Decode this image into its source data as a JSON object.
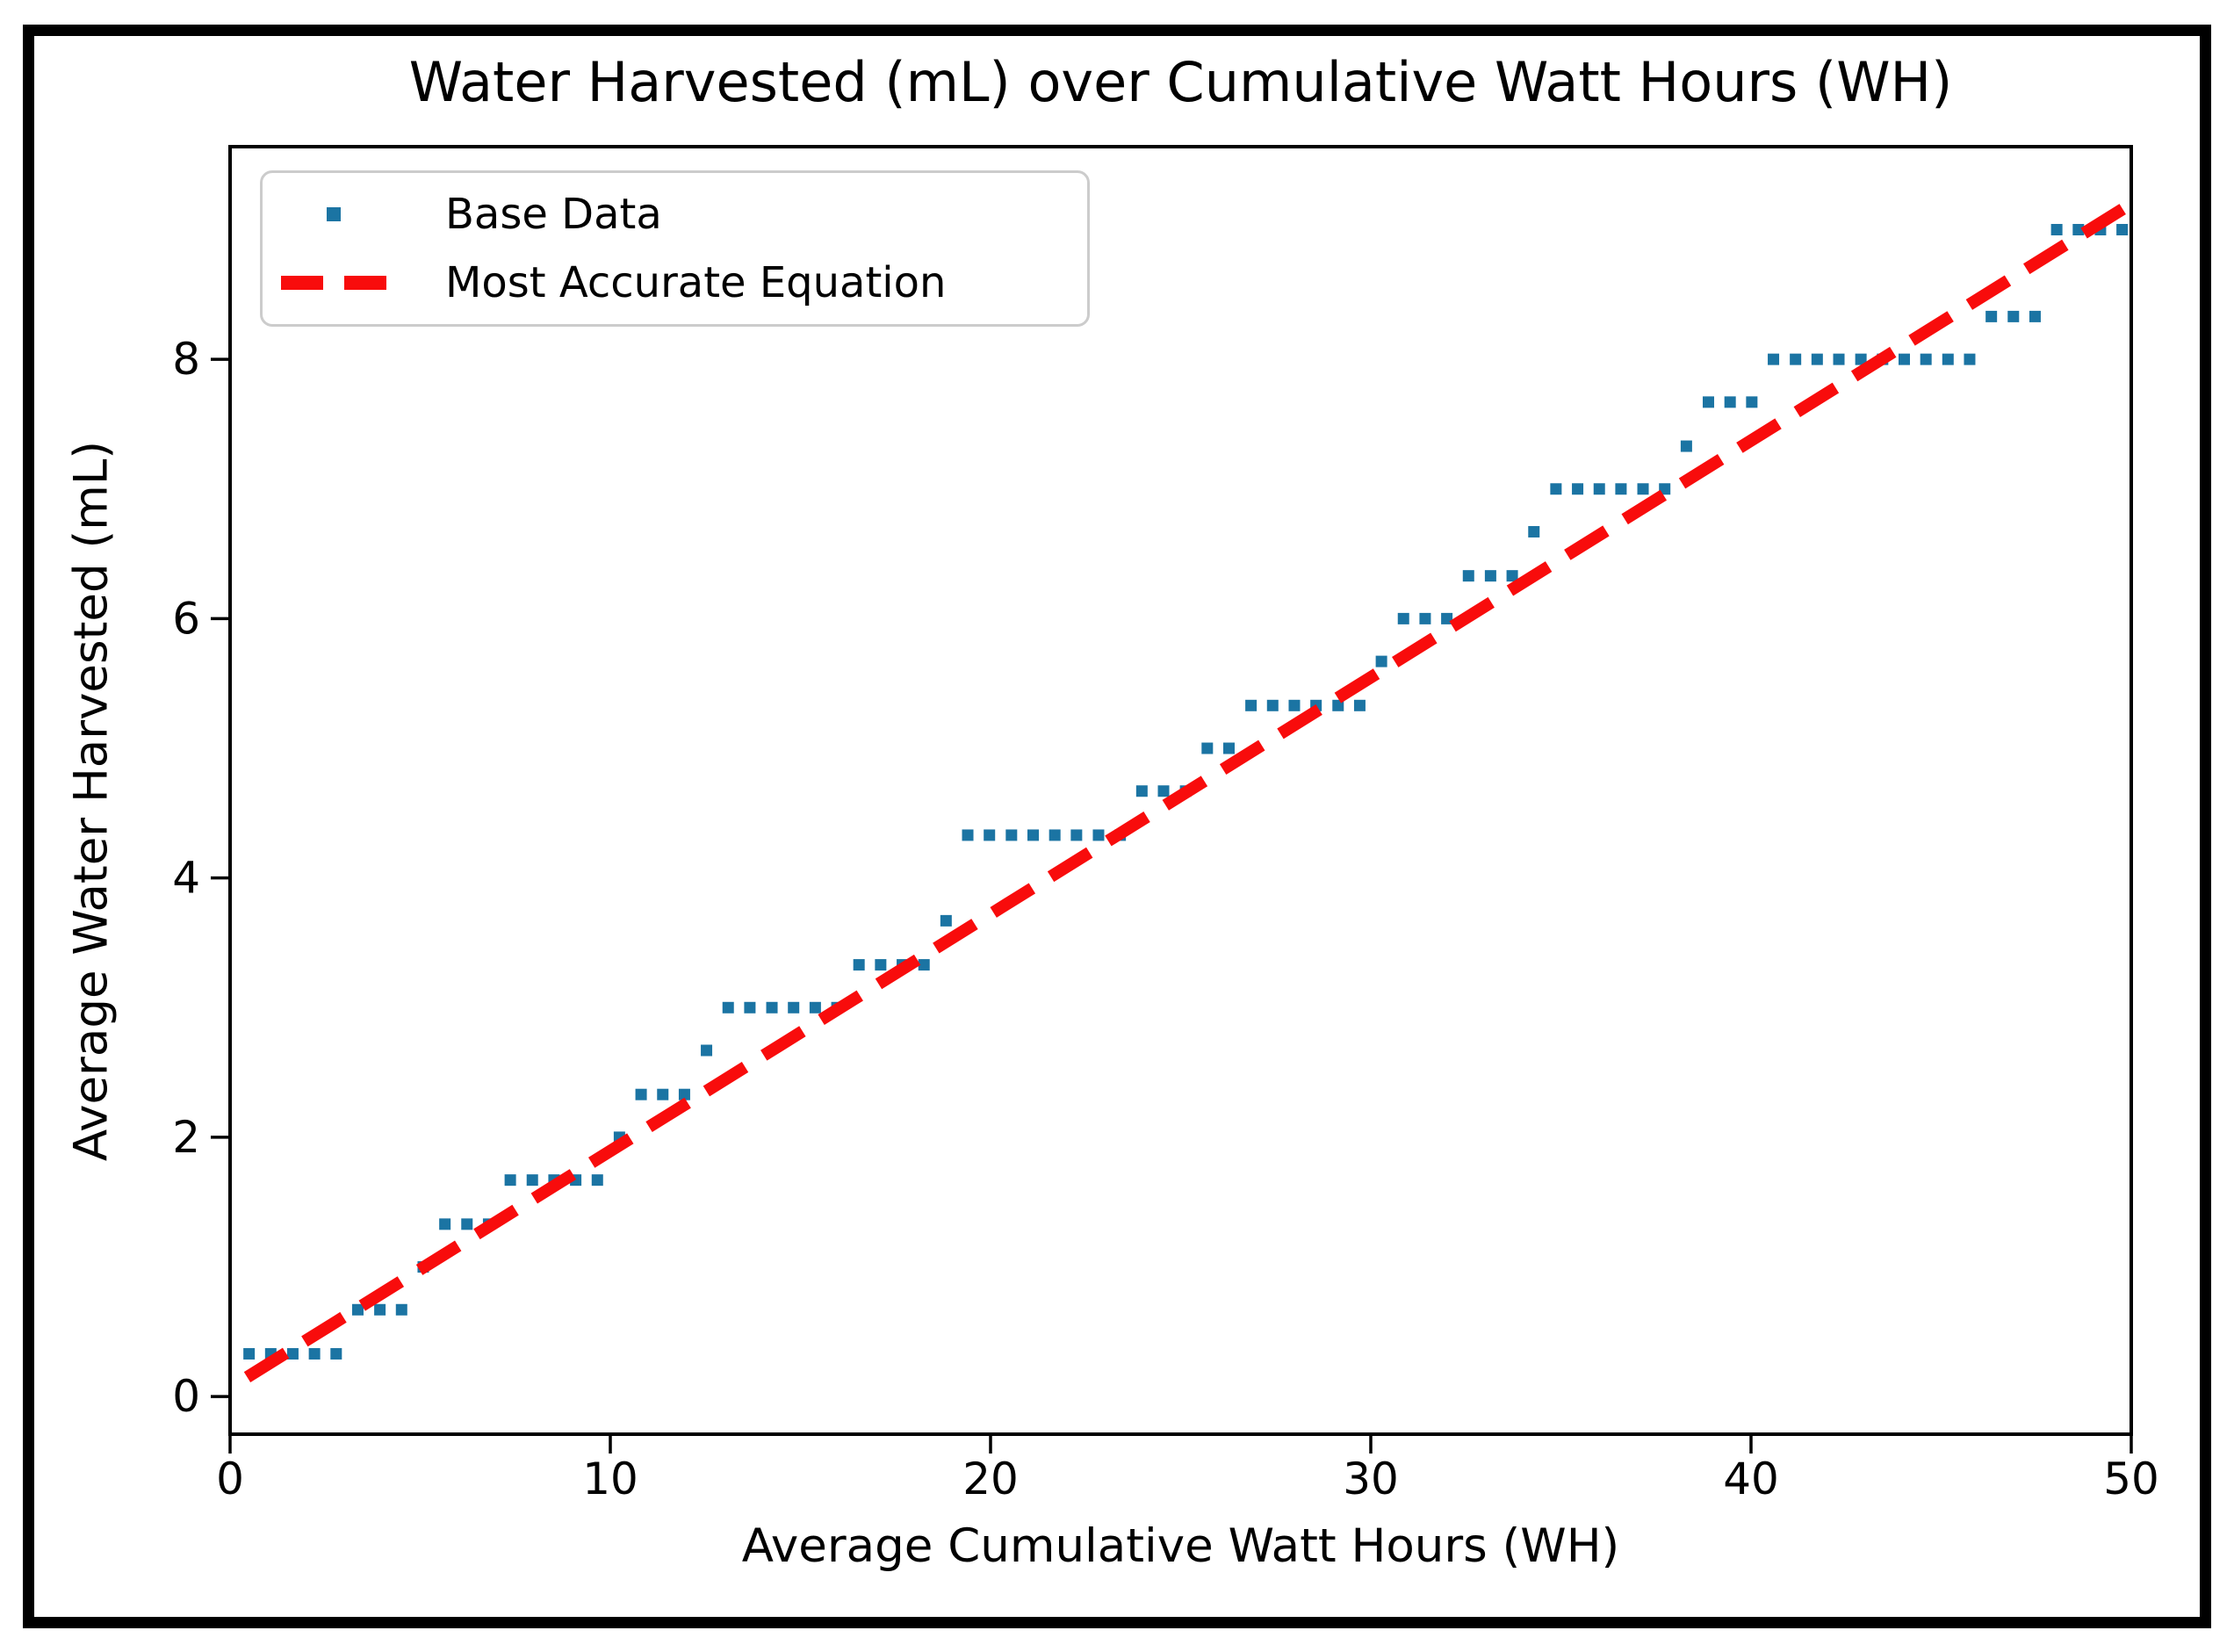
{
  "window": {
    "background": "#ffffff",
    "frame_border_color": "#000000"
  },
  "chart_data": {
    "type": "scatter",
    "title": "Water Harvested (mL) over Cumulative Watt Hours (WH)",
    "xlabel": "Average Cumulative Watt Hours (WH)",
    "ylabel": "Average Water Harvested (mL)",
    "xlim": [
      0,
      50
    ],
    "ylim": [
      -0.29,
      9.64
    ],
    "x_ticks": [
      0,
      10,
      20,
      30,
      40,
      50
    ],
    "y_ticks": [
      0,
      2,
      4,
      6,
      8
    ],
    "grid": false,
    "legend_position": "upper left",
    "axis_color": "#000000",
    "series": [
      {
        "name": "Base Data",
        "type": "scatter",
        "marker": "square",
        "color": "#1b74a3",
        "points": [
          [
            0.5,
            0.33
          ],
          [
            1.07,
            0.33
          ],
          [
            1.65,
            0.33
          ],
          [
            2.22,
            0.33
          ],
          [
            2.79,
            0.33
          ],
          [
            3.36,
            0.67
          ],
          [
            3.94,
            0.67
          ],
          [
            4.51,
            0.67
          ],
          [
            5.08,
            1.0
          ],
          [
            5.65,
            1.33
          ],
          [
            6.23,
            1.33
          ],
          [
            6.8,
            1.33
          ],
          [
            7.37,
            1.67
          ],
          [
            7.95,
            1.67
          ],
          [
            8.52,
            1.67
          ],
          [
            9.09,
            1.67
          ],
          [
            9.66,
            1.67
          ],
          [
            10.24,
            2.0
          ],
          [
            10.81,
            2.33
          ],
          [
            11.38,
            2.33
          ],
          [
            11.95,
            2.33
          ],
          [
            12.53,
            2.67
          ],
          [
            13.1,
            3.0
          ],
          [
            13.67,
            3.0
          ],
          [
            14.25,
            3.0
          ],
          [
            14.82,
            3.0
          ],
          [
            15.39,
            3.0
          ],
          [
            15.96,
            3.0
          ],
          [
            16.54,
            3.33
          ],
          [
            17.11,
            3.33
          ],
          [
            17.68,
            3.33
          ],
          [
            18.25,
            3.33
          ],
          [
            18.83,
            3.67
          ],
          [
            19.4,
            4.33
          ],
          [
            19.97,
            4.33
          ],
          [
            20.55,
            4.33
          ],
          [
            21.12,
            4.33
          ],
          [
            21.69,
            4.33
          ],
          [
            22.26,
            4.33
          ],
          [
            22.84,
            4.33
          ],
          [
            23.41,
            4.33
          ],
          [
            23.98,
            4.67
          ],
          [
            24.55,
            4.67
          ],
          [
            25.13,
            4.67
          ],
          [
            25.7,
            5.0
          ],
          [
            26.27,
            5.0
          ],
          [
            26.85,
            5.33
          ],
          [
            27.42,
            5.33
          ],
          [
            27.99,
            5.33
          ],
          [
            28.56,
            5.33
          ],
          [
            29.14,
            5.33
          ],
          [
            29.71,
            5.33
          ],
          [
            30.28,
            5.67
          ],
          [
            30.86,
            6.0
          ],
          [
            31.43,
            6.0
          ],
          [
            32.0,
            6.0
          ],
          [
            32.57,
            6.33
          ],
          [
            33.15,
            6.33
          ],
          [
            33.72,
            6.33
          ],
          [
            34.29,
            6.67
          ],
          [
            34.87,
            7.0
          ],
          [
            35.44,
            7.0
          ],
          [
            36.01,
            7.0
          ],
          [
            36.58,
            7.0
          ],
          [
            37.16,
            7.0
          ],
          [
            37.73,
            7.0
          ],
          [
            38.3,
            7.33
          ],
          [
            38.88,
            7.67
          ],
          [
            39.45,
            7.67
          ],
          [
            40.02,
            7.67
          ],
          [
            40.59,
            8.0
          ],
          [
            41.17,
            8.0
          ],
          [
            41.74,
            8.0
          ],
          [
            42.31,
            8.0
          ],
          [
            42.89,
            8.0
          ],
          [
            43.46,
            8.0
          ],
          [
            44.03,
            8.0
          ],
          [
            44.6,
            8.0
          ],
          [
            45.18,
            8.0
          ],
          [
            45.75,
            8.0
          ],
          [
            46.32,
            8.33
          ],
          [
            46.9,
            8.33
          ],
          [
            47.47,
            8.33
          ],
          [
            48.04,
            9.0
          ],
          [
            48.61,
            9.0
          ],
          [
            49.19,
            9.0
          ],
          [
            49.76,
            9.0
          ]
        ]
      },
      {
        "name": "Most Accurate Equation",
        "type": "line",
        "style": "dashed",
        "color": "#f80c0c",
        "points": [
          [
            0.45,
            0.15
          ],
          [
            50,
            9.2
          ]
        ]
      }
    ]
  }
}
